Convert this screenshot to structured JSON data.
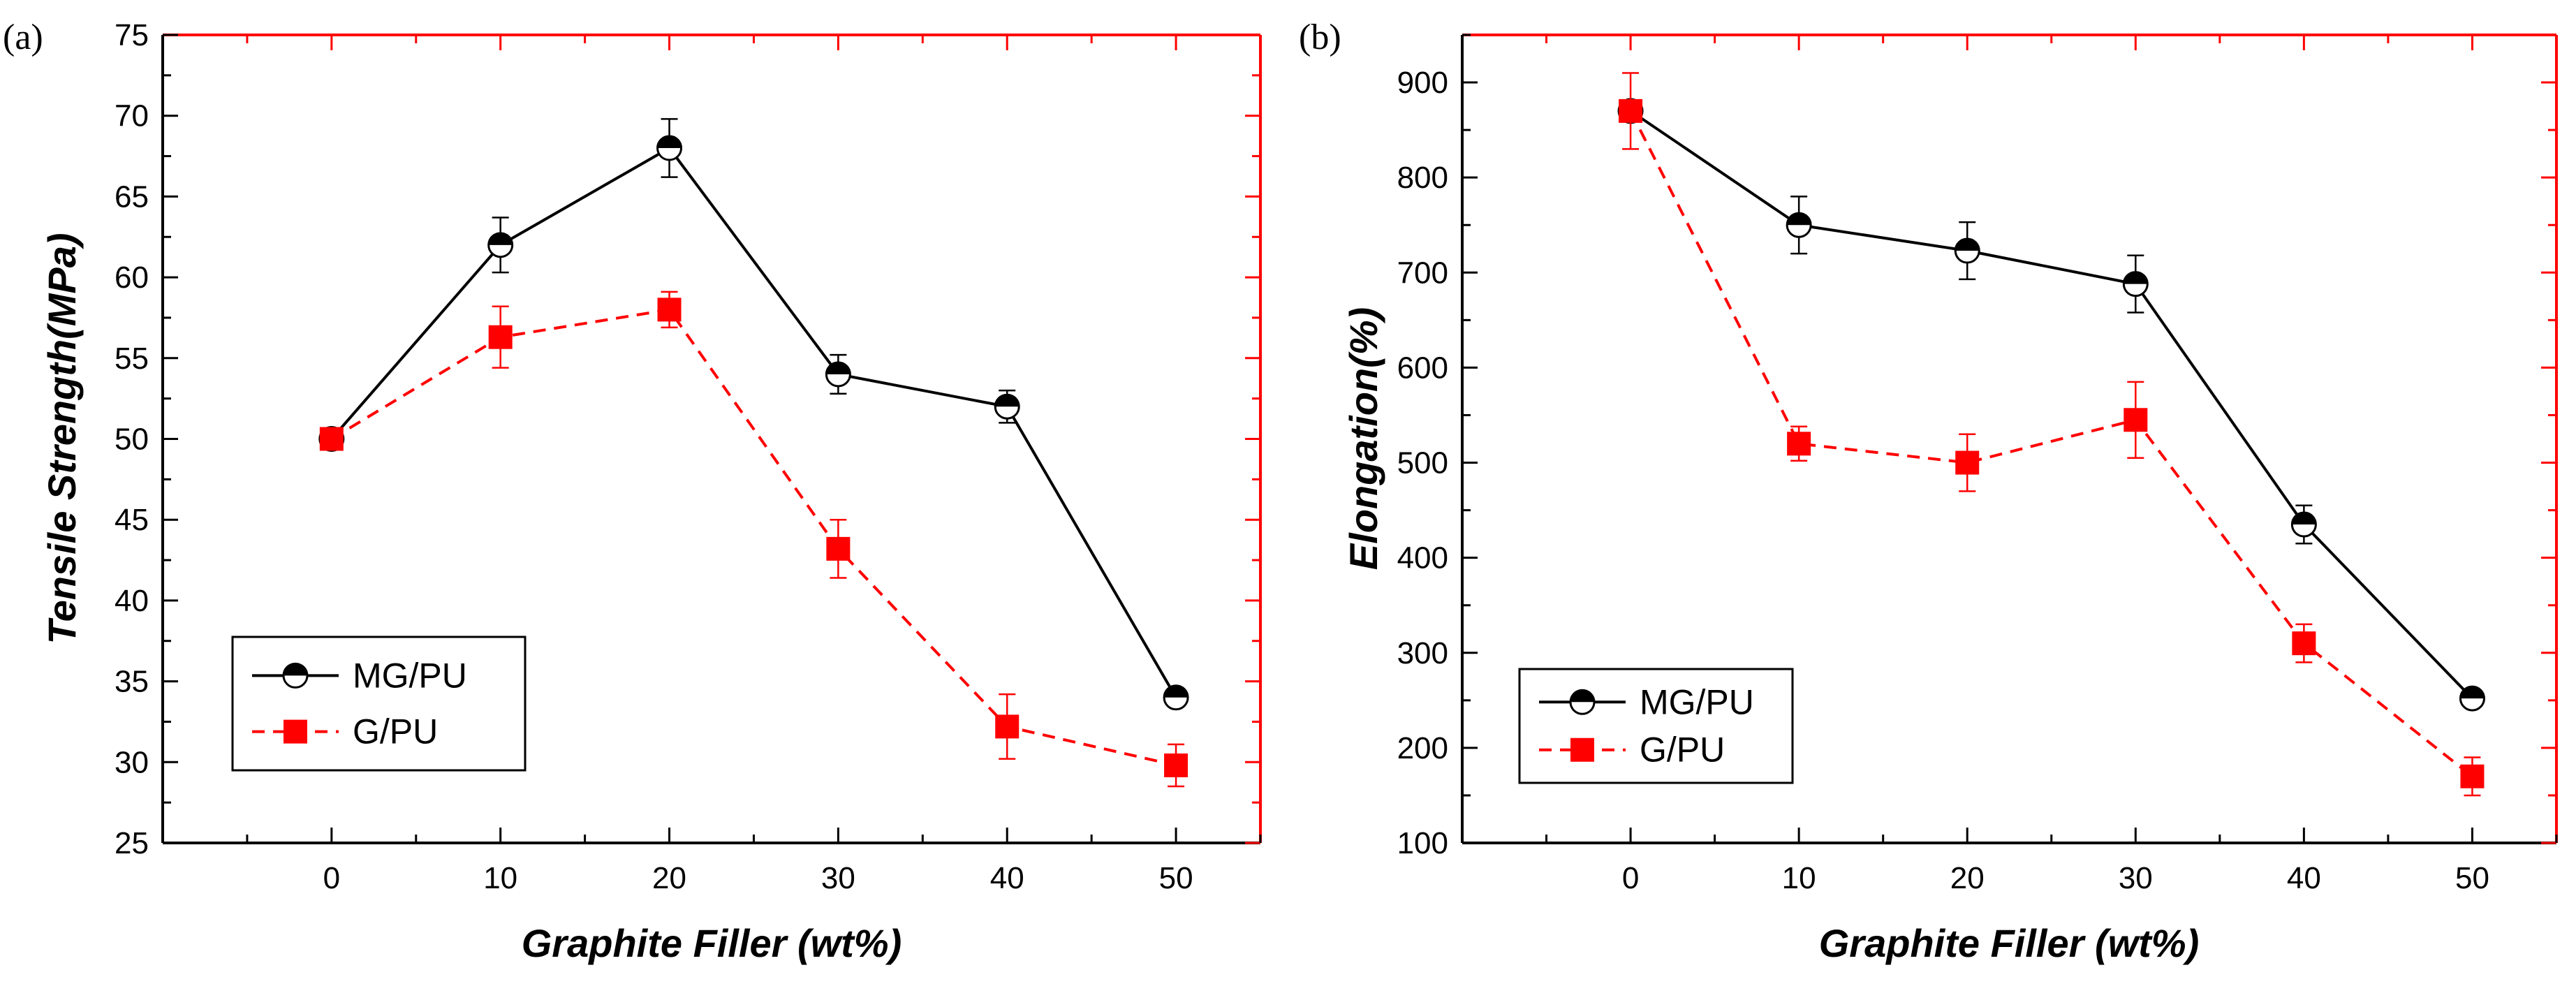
{
  "chart_data": [
    {
      "type": "line",
      "panel_label": "(a)",
      "title": "",
      "xlabel": "Graphite Filler  (wt%)",
      "ylabel": "Tensile Strength(MPa)",
      "xlim": [
        -10,
        55
      ],
      "ylim": [
        25,
        75
      ],
      "xticks": [
        0,
        10,
        20,
        30,
        40,
        50
      ],
      "yticks": [
        25,
        30,
        35,
        40,
        45,
        50,
        55,
        60,
        65,
        70,
        75
      ],
      "legend_position": "bottom-left",
      "x": [
        0,
        10,
        20,
        30,
        40,
        50
      ],
      "series": [
        {
          "name": "MG/PU",
          "color": "#000000",
          "line": "solid",
          "marker": "half-filled-circle",
          "values": [
            50,
            62,
            68,
            54,
            52,
            34
          ],
          "errors": [
            0.5,
            1.7,
            1.8,
            1.2,
            1.0,
            0.3
          ]
        },
        {
          "name": "G/PU",
          "color": "#ff0000",
          "line": "dashed",
          "marker": "square",
          "values": [
            50,
            56.3,
            58,
            43.2,
            32.2,
            29.8
          ],
          "errors": [
            0.5,
            1.9,
            1.1,
            1.8,
            2.0,
            1.3
          ]
        }
      ]
    },
    {
      "type": "line",
      "panel_label": "(b)",
      "title": "",
      "xlabel": "Graphite Filler  (wt%)",
      "ylabel": "Elongation(%)",
      "xlim": [
        -10,
        55
      ],
      "ylim": [
        100,
        950
      ],
      "xticks": [
        0,
        10,
        20,
        30,
        40,
        50
      ],
      "yticks": [
        100,
        200,
        300,
        400,
        500,
        600,
        700,
        800,
        900
      ],
      "legend_position": "bottom-left",
      "x": [
        0,
        10,
        20,
        30,
        40,
        50
      ],
      "series": [
        {
          "name": "MG/PU",
          "color": "#000000",
          "line": "solid",
          "marker": "half-filled-circle",
          "values": [
            870,
            750,
            723,
            688,
            435,
            252
          ],
          "errors": [
            10,
            30,
            30,
            30,
            20,
            8
          ]
        },
        {
          "name": "G/PU",
          "color": "#ff0000",
          "line": "dashed",
          "marker": "square",
          "values": [
            870,
            520,
            500,
            545,
            310,
            170
          ],
          "errors": [
            40,
            18,
            30,
            40,
            20,
            20
          ]
        }
      ]
    }
  ]
}
